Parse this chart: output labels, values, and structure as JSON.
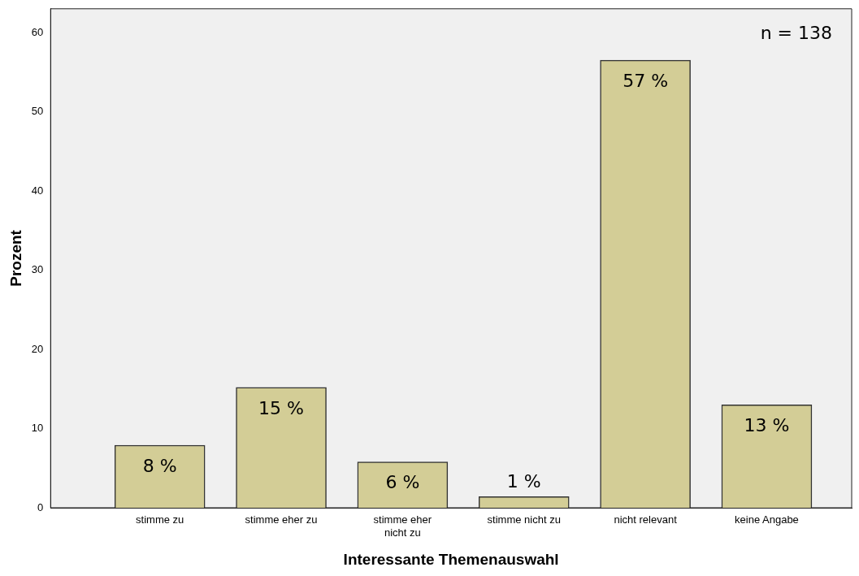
{
  "chart_data": {
    "type": "bar",
    "xlabel": "Interessante Themenauswahl",
    "ylabel": "Prozent",
    "categories": [
      "stimme zu",
      "stimme eher zu",
      "stimme eher nicht zu",
      "stimme nicht zu",
      "nicht relevant",
      "keine Angabe"
    ],
    "values": [
      7.9,
      15.2,
      5.8,
      1.4,
      56.5,
      13.0
    ],
    "value_labels": [
      "8 %",
      "15 %",
      "6 %",
      "1 %",
      "57 %",
      "13 %"
    ],
    "color": "#d3cd96",
    "ylim": [
      0,
      63
    ],
    "yticks": [
      0,
      10,
      20,
      30,
      40,
      50,
      60
    ],
    "grid": false,
    "legend": false,
    "annotations": [
      "n = 138"
    ]
  }
}
